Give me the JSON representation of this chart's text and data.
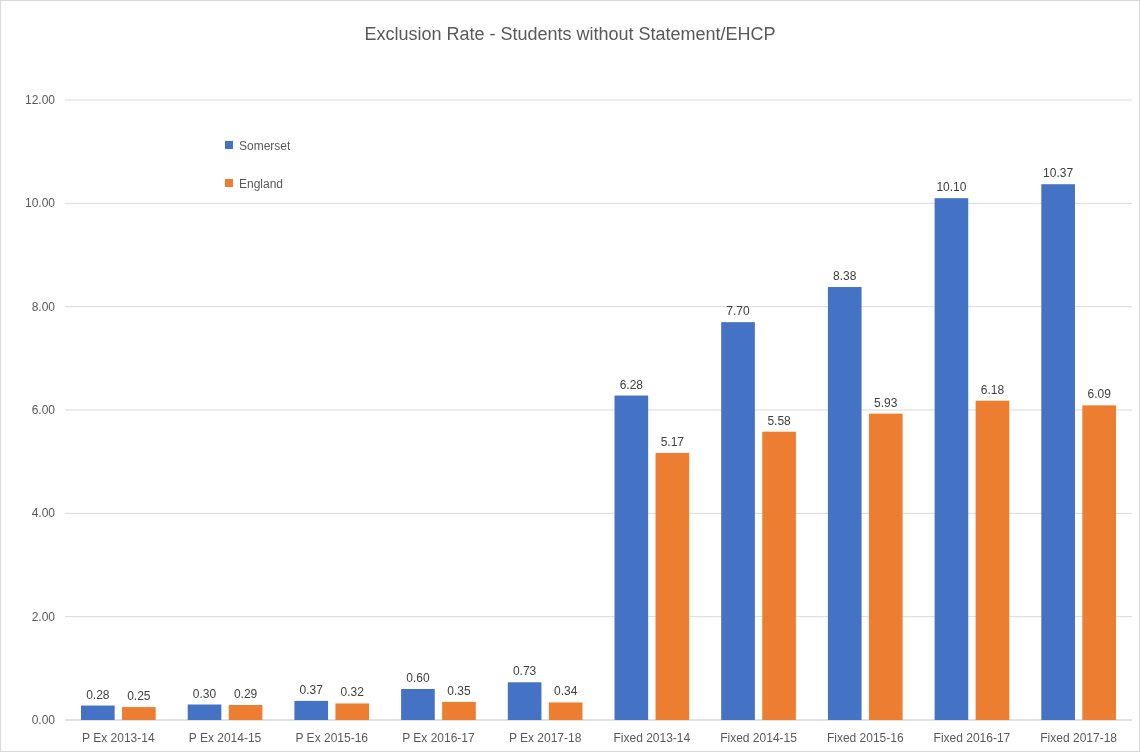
{
  "chart_data": {
    "type": "bar",
    "title": "Exclusion Rate - Students without Statement/EHCP",
    "categories": [
      "P Ex 2013-14",
      "P Ex 2014-15",
      "P Ex 2015-16",
      "P Ex 2016-17",
      "P Ex 2017-18",
      "Fixed 2013-14",
      "Fixed 2014-15",
      "Fixed 2015-16",
      "Fixed 2016-17",
      "Fixed 2017-18"
    ],
    "series": [
      {
        "name": "Somerset",
        "color": "#4472c4",
        "values": [
          0.28,
          0.3,
          0.37,
          0.6,
          0.73,
          6.28,
          7.7,
          8.38,
          10.1,
          10.37
        ],
        "value_labels": [
          "0.28",
          "0.30",
          "0.37",
          "0.60",
          "0.73",
          "6.28",
          "7.70",
          "8.38",
          "10.10",
          "10.37"
        ]
      },
      {
        "name": "England",
        "color": "#ed7d31",
        "values": [
          0.25,
          0.29,
          0.32,
          0.35,
          0.34,
          5.17,
          5.58,
          5.93,
          6.18,
          6.09
        ],
        "value_labels": [
          "0.25",
          "0.29",
          "0.32",
          "0.35",
          "0.34",
          "5.17",
          "5.58",
          "5.93",
          "6.18",
          "6.09"
        ]
      }
    ],
    "ylim": [
      0,
      12
    ],
    "yticks": [
      {
        "value": 0,
        "label": "0.00"
      },
      {
        "value": 2,
        "label": "2.00"
      },
      {
        "value": 4,
        "label": "4.00"
      },
      {
        "value": 6,
        "label": "6.00"
      },
      {
        "value": 8,
        "label": "8.00"
      },
      {
        "value": 10,
        "label": "10.00"
      },
      {
        "value": 12,
        "label": "12.00"
      }
    ],
    "grid": "y",
    "legend": "top left"
  }
}
